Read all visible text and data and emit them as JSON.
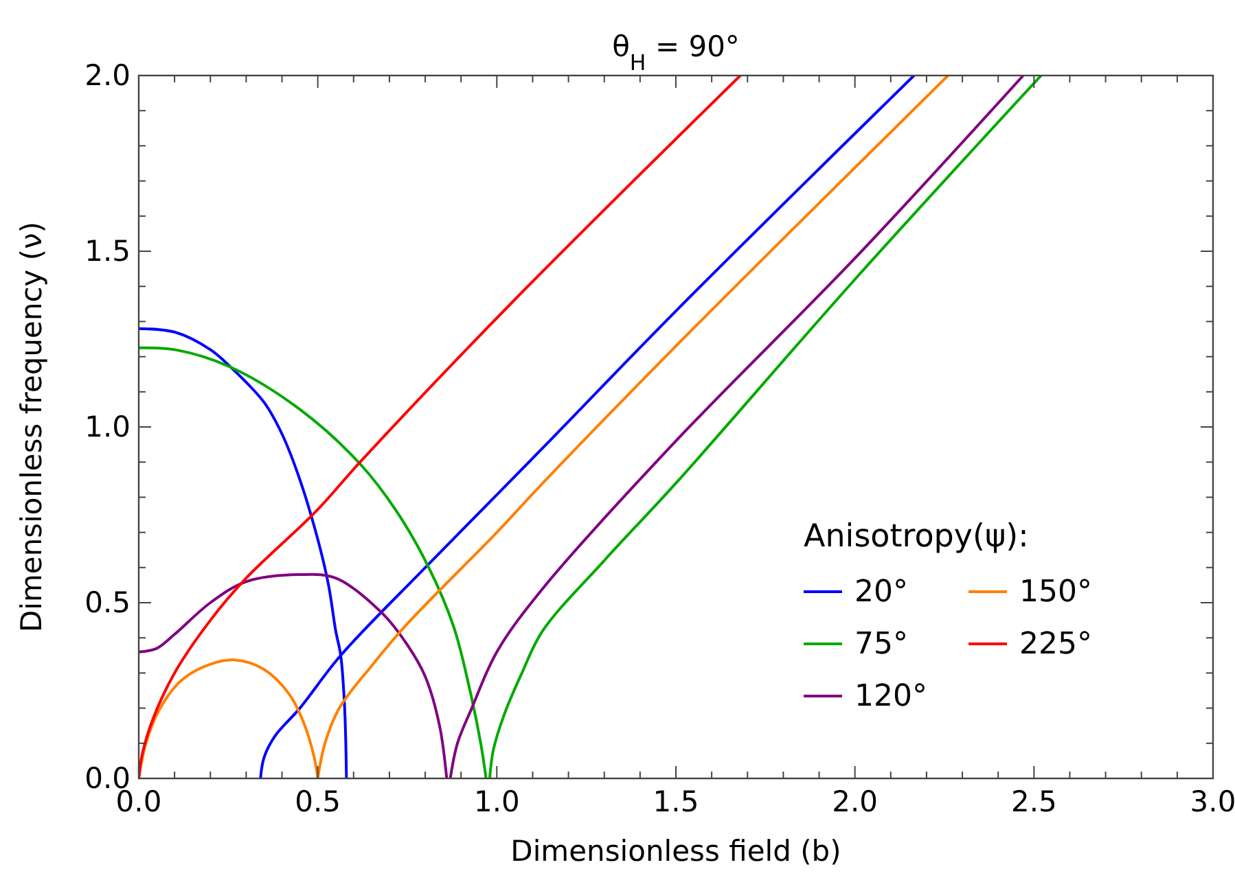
{
  "chart_data": {
    "type": "line",
    "title": "θ$_{H}$ = 90°",
    "xlabel": "Dimensionless field (b)",
    "ylabel": "Dimensionless frequency (ν)",
    "legend_title": "Anisotropy(ψ):",
    "legend": "right",
    "grid": false,
    "line_style": "solid",
    "xlim": [
      0,
      3
    ],
    "ylim": [
      0,
      2
    ],
    "xticks": [
      {
        "value": 0,
        "label": "0.0"
      },
      {
        "value": 0.1,
        "label": null
      },
      {
        "value": 0.2,
        "label": null
      },
      {
        "value": 0.3,
        "label": null
      },
      {
        "value": 0.4,
        "label": null
      },
      {
        "value": 0.5,
        "label": "0.5"
      },
      {
        "value": 0.6,
        "label": null
      },
      {
        "value": 0.7,
        "label": null
      },
      {
        "value": 0.8,
        "label": null
      },
      {
        "value": 0.9,
        "label": null
      },
      {
        "value": 1,
        "label": "1.0"
      },
      {
        "value": 1.1,
        "label": null
      },
      {
        "value": 1.2,
        "label": null
      },
      {
        "value": 1.3,
        "label": null
      },
      {
        "value": 1.4,
        "label": null
      },
      {
        "value": 1.5,
        "label": "1.5"
      },
      {
        "value": 1.6,
        "label": null
      },
      {
        "value": 1.7,
        "label": null
      },
      {
        "value": 1.8,
        "label": null
      },
      {
        "value": 1.9,
        "label": null
      },
      {
        "value": 2,
        "label": "2.0"
      },
      {
        "value": 2.1,
        "label": null
      },
      {
        "value": 2.2,
        "label": null
      },
      {
        "value": 2.3,
        "label": null
      },
      {
        "value": 2.4,
        "label": null
      },
      {
        "value": 2.5,
        "label": "2.5"
      },
      {
        "value": 2.6,
        "label": null
      },
      {
        "value": 2.7,
        "label": null
      },
      {
        "value": 2.8,
        "label": null
      },
      {
        "value": 2.9,
        "label": null
      },
      {
        "value": 3,
        "label": "3.0"
      }
    ],
    "yticks": [
      {
        "value": 0,
        "label": "0.0"
      },
      {
        "value": 0.1,
        "label": null
      },
      {
        "value": 0.2,
        "label": null
      },
      {
        "value": 0.3,
        "label": null
      },
      {
        "value": 0.4,
        "label": null
      },
      {
        "value": 0.5,
        "label": "0.5"
      },
      {
        "value": 0.6,
        "label": null
      },
      {
        "value": 0.7,
        "label": null
      },
      {
        "value": 0.8,
        "label": null
      },
      {
        "value": 0.9,
        "label": null
      },
      {
        "value": 1,
        "label": "1.0"
      },
      {
        "value": 1.1,
        "label": null
      },
      {
        "value": 1.2,
        "label": null
      },
      {
        "value": 1.3,
        "label": null
      },
      {
        "value": 1.4,
        "label": null
      },
      {
        "value": 1.5,
        "label": "1.5"
      },
      {
        "value": 1.6,
        "label": null
      },
      {
        "value": 1.7,
        "label": null
      },
      {
        "value": 1.8,
        "label": null
      },
      {
        "value": 1.9,
        "label": null
      },
      {
        "value": 2,
        "label": "2.0"
      }
    ],
    "series": [
      {
        "name": "20°",
        "color": "#0000ff",
        "x": [
          0,
          0.1,
          0.2,
          0.257,
          0.35,
          0.4,
          0.45,
          0.5,
          0.53,
          0.55,
          0.564,
          0.575,
          0.58,
          null,
          0.34,
          0.35,
          0.38,
          0.45,
          0.564,
          0.8,
          1.128,
          1.5,
          2.165
        ],
        "values": [
          1.28,
          1.27,
          1.22,
          1.17,
          1.07,
          0.98,
          0.85,
          0.68,
          0.55,
          0.42,
          0.35,
          0.2,
          0,
          null,
          0,
          0.06,
          0.12,
          0.2,
          0.35,
          0.6,
          0.94,
          1.33,
          2.0
        ]
      },
      {
        "name": "75°",
        "color": "#00aa00",
        "x": [
          0,
          0.1,
          0.257,
          0.45,
          0.618,
          0.72,
          0.81,
          0.88,
          0.925,
          0.955,
          0.97,
          null,
          0.98,
          0.99,
          1.02,
          1.07,
          1.128,
          1.3,
          1.5,
          2.0,
          2.52
        ],
        "values": [
          1.225,
          1.22,
          1.17,
          1.05,
          0.895,
          0.76,
          0.6,
          0.43,
          0.25,
          0.1,
          0,
          null,
          0,
          0.08,
          0.18,
          0.3,
          0.42,
          0.62,
          0.84,
          1.42,
          2.0
        ]
      },
      {
        "name": "120°",
        "color": "#800080",
        "x": [
          0,
          0.05,
          0.1,
          0.2,
          0.3,
          0.45,
          0.55,
          0.68,
          0.75,
          0.8,
          0.84,
          0.86,
          null,
          0.87,
          0.89,
          0.93,
          1.0,
          1.128,
          1.5,
          2.0,
          2.47
        ],
        "values": [
          0.36,
          0.37,
          0.41,
          0.5,
          0.56,
          0.58,
          0.57,
          0.47,
          0.38,
          0.29,
          0.15,
          0,
          null,
          0,
          0.1,
          0.2,
          0.36,
          0.54,
          0.96,
          1.48,
          2.0
        ]
      },
      {
        "name": "150°",
        "color": "#ff8000",
        "x": [
          0,
          0.02,
          0.06,
          0.12,
          0.2,
          0.27,
          0.35,
          0.42,
          0.46,
          0.49,
          0.5,
          null,
          0.5,
          0.52,
          0.56,
          0.65,
          0.75,
          1.0,
          1.128,
          1.5,
          2.26
        ],
        "values": [
          0,
          0.1,
          0.2,
          0.28,
          0.325,
          0.337,
          0.31,
          0.24,
          0.16,
          0.06,
          0,
          null,
          0,
          0.1,
          0.2,
          0.32,
          0.44,
          0.7,
          0.84,
          1.23,
          2.0
        ]
      },
      {
        "name": "225°",
        "color": "#ff0000",
        "x": [
          0,
          0.01,
          0.04,
          0.1,
          0.2,
          0.3,
          0.495,
          0.618,
          1.043,
          1.68
        ],
        "values": [
          0,
          0.07,
          0.17,
          0.3,
          0.45,
          0.57,
          0.76,
          0.9,
          1.355,
          2.0
        ]
      }
    ]
  }
}
